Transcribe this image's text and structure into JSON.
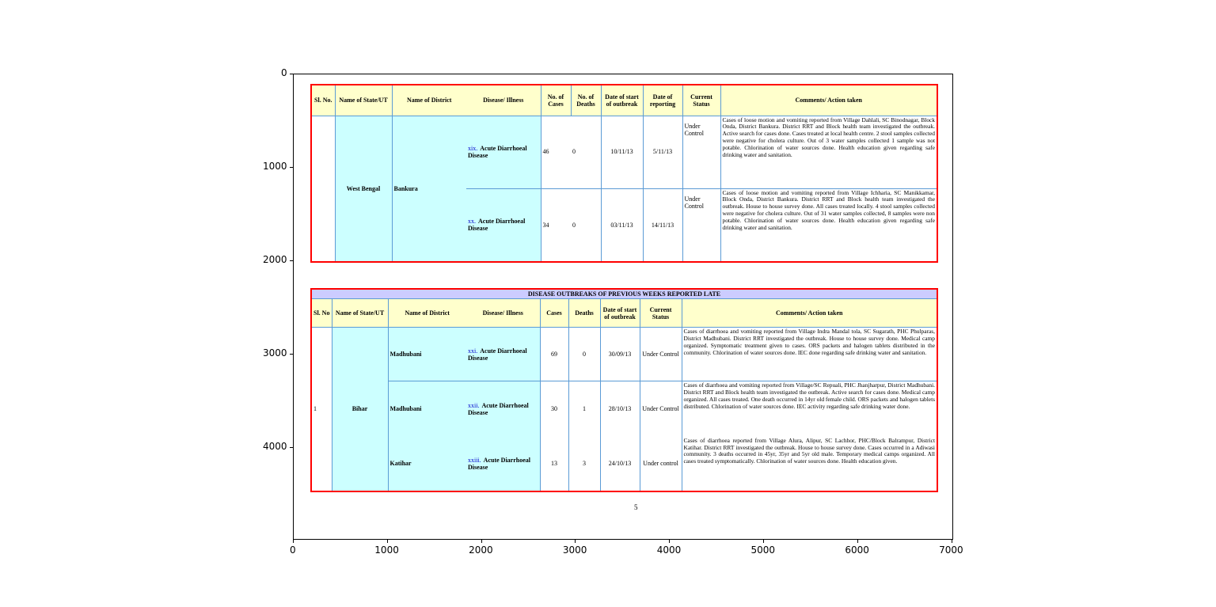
{
  "axes": {
    "x_ticks": [
      0,
      1000,
      2000,
      3000,
      4000,
      5000,
      6000,
      7000
    ],
    "y_ticks": [
      0,
      1000,
      2000,
      3000,
      4000
    ],
    "x_max": 7020,
    "y_max": 4990
  },
  "table1": {
    "headers": [
      "Sl. No.",
      "Name of State/UT",
      "Name of District",
      "Disease/ Illness",
      "No. of Cases",
      "No. of Deaths",
      "Date of start of outbreak",
      "Date of reporting",
      "Current Status",
      "Comments/ Action taken"
    ],
    "state": "West Bengal",
    "district": "Bankura",
    "rows": [
      {
        "num": "xix.",
        "disease": "Acute Diarrhoeal Disease",
        "cases": "46",
        "deaths": "0",
        "start": "10/11/13",
        "reporting": "5/11/13",
        "status": "Under Control",
        "comments": "Cases of loose motion and vomiting reported from Village Dahlali, SC Binodnagar, Block Onda, District Bankura. District RRT and Block health team investigated the outbreak. Active search for cases done. Cases treated at local health centre. 2 stool samples collected were negative for cholera culture. Out of 3 water samples collected 1 sample was not potable. Chlorination of water sources done. Health education given regarding safe drinking water and sanitation."
      },
      {
        "num": "xx.",
        "disease": "Acute Diarrhoeal Disease",
        "cases": "34",
        "deaths": "0",
        "start": "03/11/13",
        "reporting": "14/11/13",
        "status": "Under Control",
        "comments": "Cases of loose motion and vomiting reported from Village Ichharia, SC Manikkamar, Block Onda, District Bankura. District RRT and Block health team investigated the outbreak. House to house survey done. All cases treated locally. 4 stool samples collected were negative for cholera culture. Out of 31 water samples collected, 8 samples were non potable. Chlorination of water sources done. Health education given regarding safe drinking water and sanitation."
      }
    ]
  },
  "table2": {
    "title": "DISEASE OUTBREAKS OF PREVIOUS WEEKS REPORTED LATE",
    "headers": [
      "Sl. No",
      "Name of State/UT",
      "Name of District",
      "Disease/ Illness",
      "Cases",
      "Deaths",
      "Date of start of outbreak",
      "Current Status",
      "Comments/ Action taken"
    ],
    "sl": "1",
    "state": "Bihar",
    "rows": [
      {
        "district": "Madhubani",
        "num": "xxi.",
        "disease": "Acute Diarrhoeal Disease",
        "cases": "69",
        "deaths": "0",
        "start": "30/09/13",
        "status": "Under Control",
        "comments": "Cases of diarrhoea and vomiting reported from Village Indra Mandal tola, SC Sugarath, PHC Phulparas, District Madhubani. District RRT investigated the outbreak. House to house survey done. Medical camp organized. Symptomatic treatment given to cases. ORS packets and halogen tablets distributed in the community. Chlorination of water sources done. IEC done regarding safe drinking water and sanitation."
      },
      {
        "district": "Madhubani",
        "num": "xxii.",
        "disease": "Acute Diarrhoeal Disease",
        "cases": "30",
        "deaths": "1",
        "start": "28/10/13",
        "status": "Under Control",
        "comments": "Cases of diarrhoea and vomiting reported from Village/SC Repuali, PHC Jhanjharpur, District Madhubani. District RRT and Block health team investigated the outbreak. Active search for cases done. Medical camp organized. All cases treated. One death occurred in 14yr old female child. ORS packets and halogen tablets distributed. Chlorination of water sources done. IEC activity regarding safe drinking water done."
      },
      {
        "district": "Katihar",
        "num": "xxiii.",
        "disease": "Acute Diarrhoeal Disease",
        "cases": "13",
        "deaths": "3",
        "start": "24/10/13",
        "status": "Under control",
        "comments": "Cases of diarrhoea reported from Village Alura, Alipur, SC Lachhor, PHC/Block Balrampur, District Katihar. District RRT investigated the outbreak. House to house survey done. Cases occurred in a Adiwasi community. 3 deaths occurred in 45yr, 35yr and 5yr old male. Temporary medical camps organized. All cases treated symptomatically. Chlorination of water sources done. Health education given."
      }
    ]
  },
  "page_number": "5"
}
